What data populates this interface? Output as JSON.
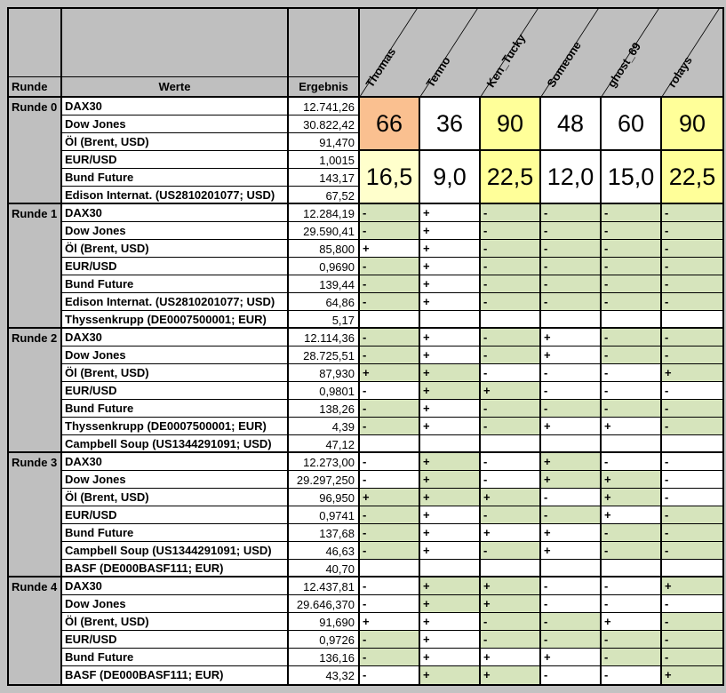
{
  "colors": {
    "frame": "#c2c2c2",
    "header_bg": "#bfbfbf",
    "green": "#d6e4bc",
    "white": "#ffffff",
    "orange": "#fac090",
    "yellow": "#ffff99",
    "pale_yellow": "#ffffcc"
  },
  "header": {
    "runde": "Runde",
    "werte": "Werte",
    "ergebnis": "Ergebnis",
    "players": [
      "Thomas",
      "Tenno",
      "Ken_Tucky",
      "Someone",
      "ghost_69",
      "rolays"
    ]
  },
  "blocks": [
    {
      "label": "Runde 0",
      "type": "scores",
      "rows": [
        [
          "DAX30",
          "12.741,26"
        ],
        [
          "Dow Jones",
          "30.822,42"
        ],
        [
          "Öl (Brent, USD)",
          "91,470"
        ],
        [
          "EUR/USD",
          "1,0015"
        ],
        [
          "Bund Future",
          "143,17"
        ],
        [
          "Edison Internat. (US2810201077; USD)",
          "67,52"
        ]
      ],
      "scores_top": [
        {
          "v": "66",
          "bg": "orange"
        },
        {
          "v": "36",
          "bg": "white"
        },
        {
          "v": "90",
          "bg": "yellow"
        },
        {
          "v": "48",
          "bg": "white"
        },
        {
          "v": "60",
          "bg": "white"
        },
        {
          "v": "90",
          "bg": "yellow"
        }
      ],
      "scores_bottom": [
        {
          "v": "16,5",
          "bg": "pale_yellow"
        },
        {
          "v": "9,0",
          "bg": "white"
        },
        {
          "v": "22,5",
          "bg": "yellow"
        },
        {
          "v": "12,0",
          "bg": "white"
        },
        {
          "v": "15,0",
          "bg": "white"
        },
        {
          "v": "22,5",
          "bg": "yellow"
        }
      ]
    },
    {
      "label": "Runde 1",
      "type": "signs",
      "rows": [
        {
          "name": "DAX30",
          "value": "12.284,19",
          "signs": [
            {
              "s": "-",
              "ok": true
            },
            {
              "s": "+",
              "ok": false
            },
            {
              "s": "-",
              "ok": true
            },
            {
              "s": "-",
              "ok": true
            },
            {
              "s": "-",
              "ok": true
            },
            {
              "s": "-",
              "ok": true
            }
          ]
        },
        {
          "name": "Dow Jones",
          "value": "29.590,41",
          "signs": [
            {
              "s": "-",
              "ok": true
            },
            {
              "s": "+",
              "ok": false
            },
            {
              "s": "-",
              "ok": true
            },
            {
              "s": "-",
              "ok": true
            },
            {
              "s": "-",
              "ok": true
            },
            {
              "s": "-",
              "ok": true
            }
          ]
        },
        {
          "name": "Öl (Brent, USD)",
          "value": "85,800",
          "signs": [
            {
              "s": "+",
              "ok": false
            },
            {
              "s": "+",
              "ok": false
            },
            {
              "s": "-",
              "ok": true
            },
            {
              "s": "-",
              "ok": true
            },
            {
              "s": "-",
              "ok": true
            },
            {
              "s": "-",
              "ok": true
            }
          ]
        },
        {
          "name": "EUR/USD",
          "value": "0,9690",
          "signs": [
            {
              "s": "-",
              "ok": true
            },
            {
              "s": "+",
              "ok": false
            },
            {
              "s": "-",
              "ok": true
            },
            {
              "s": "-",
              "ok": true
            },
            {
              "s": "-",
              "ok": true
            },
            {
              "s": "-",
              "ok": true
            }
          ]
        },
        {
          "name": "Bund Future",
          "value": "139,44",
          "signs": [
            {
              "s": "-",
              "ok": true
            },
            {
              "s": "+",
              "ok": false
            },
            {
              "s": "-",
              "ok": true
            },
            {
              "s": "-",
              "ok": true
            },
            {
              "s": "-",
              "ok": true
            },
            {
              "s": "-",
              "ok": true
            }
          ]
        },
        {
          "name": "Edison Internat. (US2810201077; USD)",
          "value": "64,86",
          "signs": [
            {
              "s": "-",
              "ok": true
            },
            {
              "s": "+",
              "ok": false
            },
            {
              "s": "-",
              "ok": true
            },
            {
              "s": "-",
              "ok": true
            },
            {
              "s": "-",
              "ok": true
            },
            {
              "s": "-",
              "ok": true
            }
          ]
        },
        {
          "name": "Thyssenkrupp (DE0007500001; EUR)",
          "value": "5,17",
          "signs": [
            {
              "s": "",
              "ok": false
            },
            {
              "s": "",
              "ok": false
            },
            {
              "s": "",
              "ok": false
            },
            {
              "s": "",
              "ok": false
            },
            {
              "s": "",
              "ok": false
            },
            {
              "s": "",
              "ok": false
            }
          ]
        }
      ]
    },
    {
      "label": "Runde 2",
      "type": "signs",
      "rows": [
        {
          "name": "DAX30",
          "value": "12.114,36",
          "signs": [
            {
              "s": "-",
              "ok": true
            },
            {
              "s": "+",
              "ok": false
            },
            {
              "s": "-",
              "ok": true
            },
            {
              "s": "+",
              "ok": false
            },
            {
              "s": "-",
              "ok": true
            },
            {
              "s": "-",
              "ok": true
            }
          ]
        },
        {
          "name": "Dow Jones",
          "value": "28.725,51",
          "signs": [
            {
              "s": "-",
              "ok": true
            },
            {
              "s": "+",
              "ok": false
            },
            {
              "s": "-",
              "ok": true
            },
            {
              "s": "+",
              "ok": false
            },
            {
              "s": "-",
              "ok": true
            },
            {
              "s": "-",
              "ok": true
            }
          ]
        },
        {
          "name": "Öl (Brent, USD)",
          "value": "87,930",
          "signs": [
            {
              "s": "+",
              "ok": true
            },
            {
              "s": "+",
              "ok": true
            },
            {
              "s": "-",
              "ok": false
            },
            {
              "s": "-",
              "ok": false
            },
            {
              "s": "-",
              "ok": false
            },
            {
              "s": "+",
              "ok": true
            }
          ]
        },
        {
          "name": "EUR/USD",
          "value": "0,9801",
          "signs": [
            {
              "s": "-",
              "ok": false
            },
            {
              "s": "+",
              "ok": true
            },
            {
              "s": "+",
              "ok": true
            },
            {
              "s": "-",
              "ok": false
            },
            {
              "s": "-",
              "ok": false
            },
            {
              "s": "-",
              "ok": false
            }
          ]
        },
        {
          "name": "Bund Future",
          "value": "138,26",
          "signs": [
            {
              "s": "-",
              "ok": true
            },
            {
              "s": "+",
              "ok": false
            },
            {
              "s": "-",
              "ok": true
            },
            {
              "s": "-",
              "ok": true
            },
            {
              "s": "-",
              "ok": true
            },
            {
              "s": "-",
              "ok": true
            }
          ]
        },
        {
          "name": "Thyssenkrupp (DE0007500001; EUR)",
          "value": "4,39",
          "signs": [
            {
              "s": "-",
              "ok": true
            },
            {
              "s": "+",
              "ok": false
            },
            {
              "s": "-",
              "ok": true
            },
            {
              "s": "+",
              "ok": false
            },
            {
              "s": "+",
              "ok": false
            },
            {
              "s": "-",
              "ok": true
            }
          ]
        },
        {
          "name": "Campbell Soup (US1344291091; USD)",
          "value": "47,12",
          "signs": [
            {
              "s": "",
              "ok": false
            },
            {
              "s": "",
              "ok": false
            },
            {
              "s": "",
              "ok": false
            },
            {
              "s": "",
              "ok": false
            },
            {
              "s": "",
              "ok": false
            },
            {
              "s": "",
              "ok": false
            }
          ]
        }
      ]
    },
    {
      "label": "Runde 3",
      "type": "signs",
      "rows": [
        {
          "name": "DAX30",
          "value": "12.273,00",
          "signs": [
            {
              "s": "-",
              "ok": false
            },
            {
              "s": "+",
              "ok": true
            },
            {
              "s": "-",
              "ok": false
            },
            {
              "s": "+",
              "ok": true
            },
            {
              "s": "-",
              "ok": false
            },
            {
              "s": "-",
              "ok": false
            }
          ]
        },
        {
          "name": "Dow Jones",
          "value": "29.297,250",
          "signs": [
            {
              "s": "-",
              "ok": false
            },
            {
              "s": "+",
              "ok": true
            },
            {
              "s": "-",
              "ok": false
            },
            {
              "s": "+",
              "ok": true
            },
            {
              "s": "+",
              "ok": true
            },
            {
              "s": "-",
              "ok": false
            }
          ]
        },
        {
          "name": "Öl (Brent, USD)",
          "value": "96,950",
          "signs": [
            {
              "s": "+",
              "ok": true
            },
            {
              "s": "+",
              "ok": true
            },
            {
              "s": "+",
              "ok": true
            },
            {
              "s": "-",
              "ok": false
            },
            {
              "s": "+",
              "ok": true
            },
            {
              "s": "-",
              "ok": false
            }
          ]
        },
        {
          "name": "EUR/USD",
          "value": "0,9741",
          "signs": [
            {
              "s": "-",
              "ok": true
            },
            {
              "s": "+",
              "ok": false
            },
            {
              "s": "-",
              "ok": true
            },
            {
              "s": "-",
              "ok": true
            },
            {
              "s": "+",
              "ok": false
            },
            {
              "s": "-",
              "ok": true
            }
          ]
        },
        {
          "name": "Bund Future",
          "value": "137,68",
          "signs": [
            {
              "s": "-",
              "ok": true
            },
            {
              "s": "+",
              "ok": false
            },
            {
              "s": "+",
              "ok": false
            },
            {
              "s": "+",
              "ok": false
            },
            {
              "s": "-",
              "ok": true
            },
            {
              "s": "-",
              "ok": true
            }
          ]
        },
        {
          "name": "Campbell Soup (US1344291091; USD)",
          "value": "46,63",
          "signs": [
            {
              "s": "-",
              "ok": true
            },
            {
              "s": "+",
              "ok": false
            },
            {
              "s": "-",
              "ok": true
            },
            {
              "s": "+",
              "ok": false
            },
            {
              "s": "-",
              "ok": true
            },
            {
              "s": "-",
              "ok": true
            }
          ]
        },
        {
          "name": "BASF (DE000BASF111; EUR)",
          "value": "40,70",
          "signs": [
            {
              "s": "",
              "ok": false
            },
            {
              "s": "",
              "ok": false
            },
            {
              "s": "",
              "ok": false
            },
            {
              "s": "",
              "ok": false
            },
            {
              "s": "",
              "ok": false
            },
            {
              "s": "",
              "ok": false
            }
          ]
        }
      ]
    },
    {
      "label": "Runde 4",
      "type": "signs",
      "rows": [
        {
          "name": "DAX30",
          "value": "12.437,81",
          "signs": [
            {
              "s": "-",
              "ok": false
            },
            {
              "s": "+",
              "ok": true
            },
            {
              "s": "+",
              "ok": true
            },
            {
              "s": "-",
              "ok": false
            },
            {
              "s": "-",
              "ok": false
            },
            {
              "s": "+",
              "ok": true
            }
          ]
        },
        {
          "name": "Dow Jones",
          "value": "29.646,370",
          "signs": [
            {
              "s": "-",
              "ok": false
            },
            {
              "s": "+",
              "ok": true
            },
            {
              "s": "+",
              "ok": true
            },
            {
              "s": "-",
              "ok": false
            },
            {
              "s": "-",
              "ok": false
            },
            {
              "s": "-",
              "ok": false
            }
          ]
        },
        {
          "name": "Öl (Brent, USD)",
          "value": "91,690",
          "signs": [
            {
              "s": "+",
              "ok": false
            },
            {
              "s": "+",
              "ok": false
            },
            {
              "s": "-",
              "ok": true
            },
            {
              "s": "-",
              "ok": true
            },
            {
              "s": "+",
              "ok": false
            },
            {
              "s": "-",
              "ok": true
            }
          ]
        },
        {
          "name": "EUR/USD",
          "value": "0,9726",
          "signs": [
            {
              "s": "-",
              "ok": true
            },
            {
              "s": "+",
              "ok": false
            },
            {
              "s": "-",
              "ok": true
            },
            {
              "s": "-",
              "ok": true
            },
            {
              "s": "-",
              "ok": true
            },
            {
              "s": "-",
              "ok": true
            }
          ]
        },
        {
          "name": "Bund Future",
          "value": "136,16",
          "signs": [
            {
              "s": "-",
              "ok": true
            },
            {
              "s": "+",
              "ok": false
            },
            {
              "s": "+",
              "ok": false
            },
            {
              "s": "+",
              "ok": false
            },
            {
              "s": "-",
              "ok": true
            },
            {
              "s": "-",
              "ok": true
            }
          ]
        },
        {
          "name": "BASF (DE000BASF111; EUR)",
          "value": "43,32",
          "signs": [
            {
              "s": "-",
              "ok": false
            },
            {
              "s": "+",
              "ok": true
            },
            {
              "s": "+",
              "ok": true
            },
            {
              "s": "-",
              "ok": false
            },
            {
              "s": "-",
              "ok": false
            },
            {
              "s": "+",
              "ok": true
            }
          ]
        }
      ]
    }
  ]
}
